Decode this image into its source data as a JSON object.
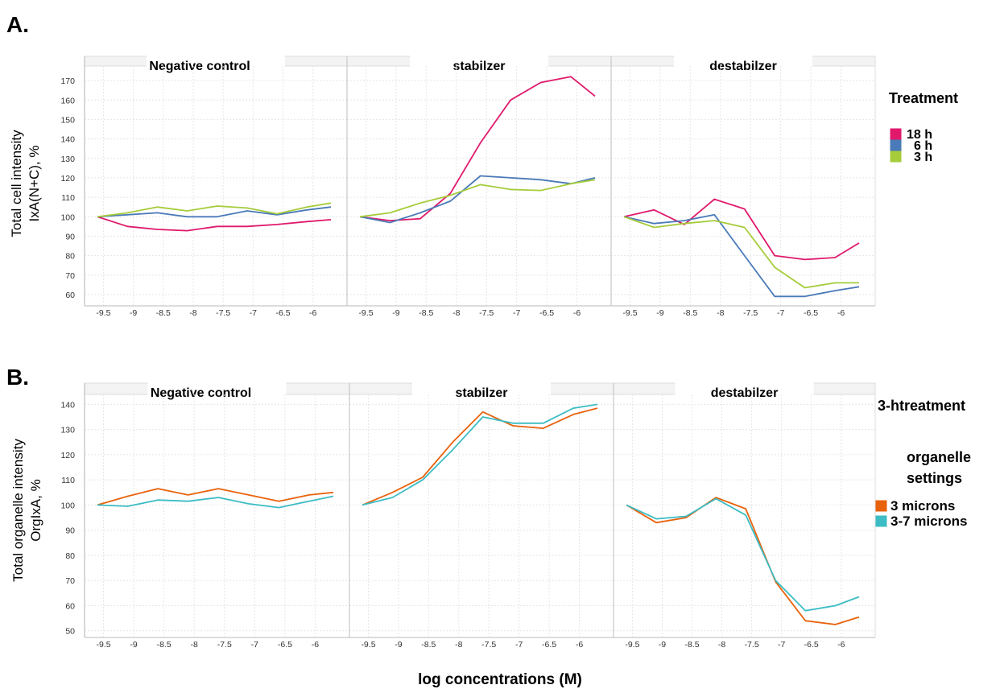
{
  "xlabel": "log concentrations (M)",
  "x_ticks": [
    -9.5,
    -9,
    -8.5,
    -8,
    -7.5,
    -7,
    -6.5,
    -6
  ],
  "colors": {
    "18 h": "#e0196b",
    "6 h": "#4a7ab8",
    "3 h": "#a6cc3a",
    "3 microns": "#e8620c",
    "3-7 microns": "#3cbcc4"
  },
  "chart_data": [
    {
      "type": "line",
      "panel_label": "A.",
      "ylabel_lines": [
        "Total cell intensity",
        "IxA(N+C), %"
      ],
      "ylim": [
        55,
        175
      ],
      "yticks": [
        60,
        70,
        80,
        90,
        100,
        110,
        120,
        130,
        140,
        150,
        160,
        170
      ],
      "grid": true,
      "legend_title": "Treatment",
      "legend_title_lines": [
        "Treatment"
      ],
      "legend_labels": [
        "18 h",
        "6 h",
        "3 h"
      ],
      "legend_placement": "right",
      "x": [
        -9.6,
        -9.1,
        -8.6,
        -8.1,
        -7.6,
        -7.1,
        -6.6,
        -6.1,
        -5.7
      ],
      "facets": [
        {
          "title": "Negative control",
          "series": [
            {
              "name": "18 h",
              "values": [
                100,
                95,
                93.5,
                92.8,
                95,
                95,
                96,
                97.5,
                98.5
              ]
            },
            {
              "name": "6 h",
              "values": [
                100,
                101,
                102,
                100,
                100,
                103,
                101,
                103.5,
                105
              ]
            },
            {
              "name": "3 h",
              "values": [
                100,
                102,
                105,
                103,
                105.5,
                104.5,
                101.5,
                105,
                107
              ]
            }
          ]
        },
        {
          "title": "stabilzer",
          "series": [
            {
              "name": "18 h",
              "values": [
                100,
                98,
                99,
                112,
                138,
                160,
                169,
                172,
                162
              ]
            },
            {
              "name": "6 h",
              "values": [
                100,
                97,
                102,
                108,
                121,
                120,
                119,
                117,
                120
              ]
            },
            {
              "name": "3 h",
              "values": [
                100,
                102,
                107,
                111,
                116.5,
                114,
                113.5,
                117,
                119
              ]
            }
          ]
        },
        {
          "title": "destabilzer",
          "series": [
            {
              "name": "18 h",
              "values": [
                100,
                103.5,
                96,
                109,
                104,
                80,
                78,
                79,
                86.5
              ]
            },
            {
              "name": "6 h",
              "values": [
                100,
                96.5,
                98,
                101,
                80,
                59,
                59,
                62,
                64
              ]
            },
            {
              "name": "3 h",
              "values": [
                100,
                94.5,
                96.5,
                98,
                94.5,
                74,
                63.5,
                66,
                66
              ]
            }
          ]
        }
      ]
    },
    {
      "type": "line",
      "panel_label": "B.",
      "ylabel_lines": [
        "Total organelle intensity",
        "OrgIxA, %"
      ],
      "ylim": [
        48,
        143
      ],
      "yticks": [
        50,
        60,
        70,
        80,
        90,
        100,
        110,
        120,
        130,
        140
      ],
      "grid": true,
      "legend_title": "3-htreatment organelle settings",
      "legend_title_lines": [
        "3-htreatment",
        "organelle",
        "settings"
      ],
      "legend_labels": [
        "3 microns",
        "3-7 microns"
      ],
      "legend_placement": "right",
      "x": [
        -9.6,
        -9.1,
        -8.6,
        -8.1,
        -7.6,
        -7.1,
        -6.6,
        -6.1,
        -5.7
      ],
      "facets": [
        {
          "title": "Negative control",
          "series": [
            {
              "name": "3 microns",
              "values": [
                100,
                103.5,
                106.5,
                104,
                106.5,
                104,
                101.5,
                104,
                105
              ]
            },
            {
              "name": "3-7 microns",
              "values": [
                100,
                99.5,
                102,
                101.5,
                103,
                100.5,
                99,
                101.5,
                103.5
              ]
            }
          ]
        },
        {
          "title": "stabilzer",
          "series": [
            {
              "name": "3 microns",
              "values": [
                100,
                105,
                111,
                125,
                137,
                131.5,
                130.5,
                136,
                138.5
              ]
            },
            {
              "name": "3-7 microns",
              "values": [
                100,
                103,
                110,
                122,
                135,
                132.5,
                132.5,
                138.5,
                140
              ]
            }
          ]
        },
        {
          "title": "destabilzer",
          "series": [
            {
              "name": "3 microns",
              "values": [
                100,
                93,
                95,
                103,
                98.5,
                69.5,
                54,
                52.5,
                55.5
              ]
            },
            {
              "name": "3-7 microns",
              "values": [
                100,
                94.5,
                95.5,
                102.5,
                96,
                70,
                58,
                60,
                63.5
              ]
            }
          ]
        }
      ]
    }
  ]
}
